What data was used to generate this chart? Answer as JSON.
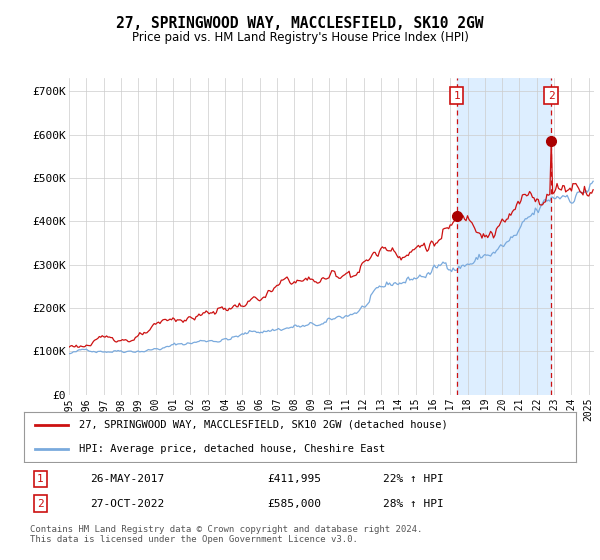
{
  "title": "27, SPRINGWOOD WAY, MACCLESFIELD, SK10 2GW",
  "subtitle": "Price paid vs. HM Land Registry's House Price Index (HPI)",
  "background_color": "#ffffff",
  "plot_bg_color": "#ffffff",
  "shade_color": "#ddeeff",
  "ylabel": "",
  "ylim": [
    0,
    730000
  ],
  "yticks": [
    0,
    100000,
    200000,
    300000,
    400000,
    500000,
    600000,
    700000
  ],
  "ytick_labels": [
    "£0",
    "£100K",
    "£200K",
    "£300K",
    "£400K",
    "£500K",
    "£600K",
    "£700K"
  ],
  "xlim_start": 1995.0,
  "xlim_end": 2025.3,
  "xticks": [
    1995,
    1996,
    1997,
    1998,
    1999,
    2000,
    2001,
    2002,
    2003,
    2004,
    2005,
    2006,
    2007,
    2008,
    2009,
    2010,
    2011,
    2012,
    2013,
    2014,
    2015,
    2016,
    2017,
    2018,
    2019,
    2020,
    2021,
    2022,
    2023,
    2024,
    2025
  ],
  "red_line_color": "#cc1111",
  "blue_line_color": "#7aaadd",
  "marker_color": "#aa0000",
  "purchase1_date": 2017.38,
  "purchase1_label": "1",
  "purchase1_value": 411995,
  "purchase1_display": "26-MAY-2017",
  "purchase1_price_display": "£411,995",
  "purchase1_hpi_display": "22% ↑ HPI",
  "purchase2_date": 2022.83,
  "purchase2_label": "2",
  "purchase2_display": "27-OCT-2022",
  "purchase2_price_display": "£585,000",
  "purchase2_value": 585000,
  "purchase2_hpi_display": "28% ↑ HPI",
  "legend_label_red": "27, SPRINGWOOD WAY, MACCLESFIELD, SK10 2GW (detached house)",
  "legend_label_blue": "HPI: Average price, detached house, Cheshire East",
  "footer_text": "Contains HM Land Registry data © Crown copyright and database right 2024.\nThis data is licensed under the Open Government Licence v3.0."
}
